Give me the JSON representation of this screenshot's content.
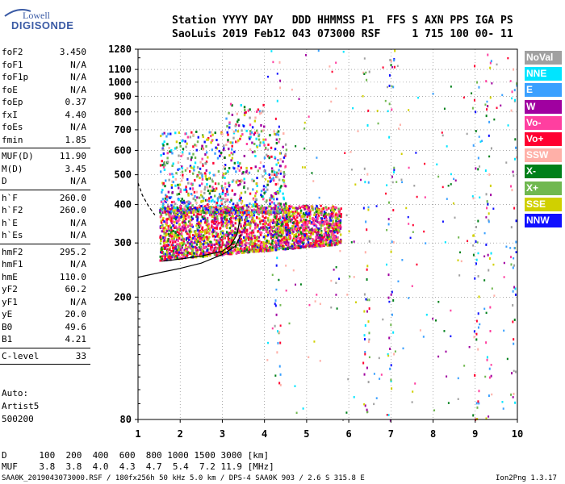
{
  "logo": {
    "line1": "Lowell",
    "line2": "DIGISONDE"
  },
  "header": {
    "row1": "Station YYYY DAY   DDD HHMMSS P1  FFS S AXN PPS IGA PS",
    "row2": "SaoLuis 2019 Feb12 043 073000 RSF     1 715 100 00- 11"
  },
  "params": [
    {
      "name": "foF2",
      "value": "3.450"
    },
    {
      "name": "foF1",
      "value": "N/A"
    },
    {
      "name": "foF1p",
      "value": "N/A"
    },
    {
      "name": "foE",
      "value": "N/A"
    },
    {
      "name": "foEp",
      "value": "0.37"
    },
    {
      "name": "fxI",
      "value": "4.40"
    },
    {
      "name": "foEs",
      "value": "N/A"
    },
    {
      "name": "fmin",
      "value": "1.85"
    },
    {
      "name": "MUF(D)",
      "value": "11.90"
    },
    {
      "name": "M(D)",
      "value": "3.45"
    },
    {
      "name": "D",
      "value": "N/A"
    },
    {
      "name": "h`F",
      "value": "260.0"
    },
    {
      "name": "h`F2",
      "value": "260.0"
    },
    {
      "name": "h`E",
      "value": "N/A"
    },
    {
      "name": "h`Es",
      "value": "N/A"
    },
    {
      "name": "hmF2",
      "value": "295.2"
    },
    {
      "name": "hmF1",
      "value": "N/A"
    },
    {
      "name": "hmE",
      "value": "110.0"
    },
    {
      "name": "yF2",
      "value": "60.2"
    },
    {
      "name": "yF1",
      "value": "N/A"
    },
    {
      "name": "yE",
      "value": "20.0"
    },
    {
      "name": "B0",
      "value": "49.6"
    },
    {
      "name": "B1",
      "value": "4.21"
    },
    {
      "name": "C-level",
      "value": "33"
    }
  ],
  "autoscale": {
    "line1": "Auto:",
    "line2": "Artist5",
    "line3": "500200"
  },
  "legend": [
    {
      "label": "NoVal",
      "color": "#a0a0a0"
    },
    {
      "label": "NNE",
      "color": "#00e5ff"
    },
    {
      "label": "E",
      "color": "#3aa0ff"
    },
    {
      "label": "W",
      "color": "#a000a0"
    },
    {
      "label": "Vo-",
      "color": "#ff3fa0"
    },
    {
      "label": "Vo+",
      "color": "#ff0030"
    },
    {
      "label": "SSW",
      "color": "#ffb0a8"
    },
    {
      "label": "X-",
      "color": "#00801a"
    },
    {
      "label": "X+",
      "color": "#70b850"
    },
    {
      "label": "SSE",
      "color": "#d0d000"
    },
    {
      "label": "NNW",
      "color": "#1010ff"
    }
  ],
  "chart_data": {
    "type": "scatter",
    "title": "",
    "xlabel": "",
    "ylabel": "",
    "xlim": [
      1,
      10
    ],
    "ylim": [
      80,
      1280
    ],
    "y_scale": "log",
    "x_ticks": [
      "1",
      "2",
      "3",
      "4",
      "5",
      "6",
      "7",
      "8",
      "9",
      "10"
    ],
    "y_ticks": [
      {
        "v": 80,
        "label": "80"
      },
      {
        "v": 200,
        "label": "200"
      },
      {
        "v": 300,
        "label": "300"
      },
      {
        "v": 400,
        "label": "400"
      },
      {
        "v": 500,
        "label": "500"
      },
      {
        "v": 600,
        "label": "600"
      },
      {
        "v": 700,
        "label": "700"
      },
      {
        "v": 800,
        "label": "800"
      },
      {
        "v": 900,
        "label": "900"
      },
      {
        "v": 1000,
        "label": "1000"
      },
      {
        "v": 1100,
        "label": "1100"
      },
      {
        "v": 1280,
        "label": "1280"
      }
    ],
    "grid": "dotted",
    "trace_profile": {
      "x": [
        1.0,
        1.5,
        2.0,
        2.5,
        3.0,
        3.3,
        3.45
      ],
      "y": [
        232,
        240,
        248,
        258,
        275,
        292,
        320
      ]
    },
    "trace_virtual": {
      "x": [
        1.6,
        2.0,
        2.5,
        3.0,
        3.2,
        3.35,
        3.42
      ],
      "y": [
        262,
        266,
        272,
        282,
        295,
        320,
        360
      ]
    },
    "trace_dashed": {
      "x": [
        1.0,
        1.1,
        1.25,
        1.4
      ],
      "y": [
        470,
        430,
        395,
        370
      ]
    },
    "echo_cloud": {
      "note": "",
      "dense_band": {
        "x": [
          1.5,
          5.8
        ],
        "y": [
          260,
          400
        ]
      },
      "sparse_region": {
        "x": [
          1.5,
          4.5
        ],
        "y": [
          400,
          900
        ]
      },
      "vertical_streaks_x": [
        4.3,
        6.4,
        7.0,
        9.0,
        9.3,
        9.9
      ]
    }
  },
  "footer": {
    "d_row": "D      100  200  400  600  800 1000 1500 3000 [km]",
    "muf_row": "MUF    3.8  3.8  4.0  4.3  4.7  5.4  7.2 11.9 [MHz]",
    "info": "SAA0K_2019043073000.RSF / 180fx256h 50 kHz 5.0 km / DPS-4 SAA0K 903 / 2.6 S 315.8 E",
    "version": "Ion2Png 1.3.17"
  }
}
